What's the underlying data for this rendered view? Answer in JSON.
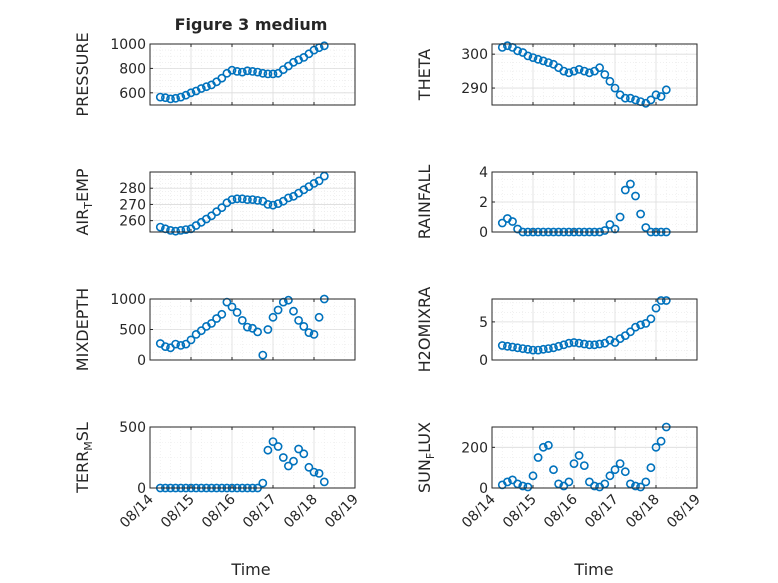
{
  "figure": {
    "title": "Figure 3 medium",
    "xlabel": "Time",
    "x_tick_labels": [
      "08/14",
      "08/15",
      "08/16",
      "08/17",
      "08/18",
      "08/19"
    ],
    "marker_color": "#0072BD"
  },
  "chart_data": [
    {
      "type": "scatter",
      "title": "Figure 3 medium",
      "ylabel": "PRESSURE",
      "ylim": [
        500,
        1000
      ],
      "yticks": [
        600,
        800,
        1000
      ],
      "xlim": [
        "08/14",
        "08/19"
      ],
      "x": [
        "08/14 06:00",
        "08/14 09:00",
        "08/14 12:00",
        "08/14 15:00",
        "08/14 18:00",
        "08/14 21:00",
        "08/15 00:00",
        "08/15 03:00",
        "08/15 06:00",
        "08/15 09:00",
        "08/15 12:00",
        "08/15 15:00",
        "08/15 18:00",
        "08/15 21:00",
        "08/16 00:00",
        "08/16 03:00",
        "08/16 06:00",
        "08/16 09:00",
        "08/16 12:00",
        "08/16 15:00",
        "08/16 18:00",
        "08/16 21:00",
        "08/17 00:00",
        "08/17 03:00",
        "08/17 06:00",
        "08/17 09:00",
        "08/17 12:00",
        "08/17 15:00",
        "08/17 18:00",
        "08/17 21:00",
        "08/18 00:00",
        "08/18 03:00",
        "08/18 06:00"
      ],
      "y": [
        565,
        560,
        550,
        555,
        565,
        580,
        600,
        615,
        635,
        650,
        665,
        690,
        720,
        760,
        785,
        775,
        770,
        780,
        775,
        770,
        760,
        755,
        755,
        760,
        790,
        820,
        850,
        870,
        890,
        920,
        950,
        970,
        985
      ]
    },
    {
      "type": "scatter",
      "ylabel": "THETA",
      "ylim": [
        285,
        303
      ],
      "yticks": [
        290,
        300
      ],
      "xlim": [
        "08/14",
        "08/19"
      ],
      "x": [
        "08/14 06:00",
        "08/14 09:00",
        "08/14 12:00",
        "08/14 15:00",
        "08/14 18:00",
        "08/14 21:00",
        "08/15 00:00",
        "08/15 03:00",
        "08/15 06:00",
        "08/15 09:00",
        "08/15 12:00",
        "08/15 15:00",
        "08/15 18:00",
        "08/15 21:00",
        "08/16 00:00",
        "08/16 03:00",
        "08/16 06:00",
        "08/16 09:00",
        "08/16 12:00",
        "08/16 15:00",
        "08/16 18:00",
        "08/16 21:00",
        "08/17 00:00",
        "08/17 03:00",
        "08/17 06:00",
        "08/17 09:00",
        "08/17 12:00",
        "08/17 15:00",
        "08/17 18:00",
        "08/17 21:00",
        "08/18 00:00",
        "08/18 03:00",
        "08/18 06:00"
      ],
      "y": [
        302,
        302.5,
        302,
        301,
        300.5,
        299.5,
        299,
        298.5,
        298,
        297.5,
        297,
        296,
        295,
        294.5,
        295,
        295.5,
        295,
        294.5,
        295,
        296,
        294,
        292,
        290,
        288,
        287,
        287,
        286.5,
        286,
        285.5,
        286.5,
        288,
        287.5,
        289.5
      ]
    },
    {
      "type": "scatter",
      "ylabel": "AIR_TEMP",
      "ylim": [
        253,
        290
      ],
      "yticks": [
        260,
        270,
        280
      ],
      "xlim": [
        "08/14",
        "08/19"
      ],
      "x": [
        "08/14 06:00",
        "08/14 09:00",
        "08/14 12:00",
        "08/14 15:00",
        "08/14 18:00",
        "08/14 21:00",
        "08/15 00:00",
        "08/15 03:00",
        "08/15 06:00",
        "08/15 09:00",
        "08/15 12:00",
        "08/15 15:00",
        "08/15 18:00",
        "08/15 21:00",
        "08/16 00:00",
        "08/16 03:00",
        "08/16 06:00",
        "08/16 09:00",
        "08/16 12:00",
        "08/16 15:00",
        "08/16 18:00",
        "08/16 21:00",
        "08/17 00:00",
        "08/17 03:00",
        "08/17 06:00",
        "08/17 09:00",
        "08/17 12:00",
        "08/17 15:00",
        "08/17 18:00",
        "08/17 21:00",
        "08/18 00:00",
        "08/18 03:00",
        "08/18 06:00"
      ],
      "y": [
        256,
        255,
        254,
        253.5,
        254,
        254.5,
        255,
        257,
        259,
        261,
        263,
        265.5,
        268,
        271,
        273,
        273.5,
        273.5,
        273,
        273,
        272.5,
        272,
        270,
        269.5,
        270.5,
        272,
        274,
        275,
        277,
        279,
        281,
        283,
        284.5,
        287.5
      ]
    },
    {
      "type": "scatter",
      "ylabel": "RAINFALL",
      "ylim": [
        0,
        4
      ],
      "yticks": [
        0,
        2,
        4
      ],
      "xlim": [
        "08/14",
        "08/19"
      ],
      "x": [
        "08/14 06:00",
        "08/14 09:00",
        "08/14 12:00",
        "08/14 15:00",
        "08/14 18:00",
        "08/14 21:00",
        "08/15 00:00",
        "08/15 03:00",
        "08/15 06:00",
        "08/15 09:00",
        "08/15 12:00",
        "08/15 15:00",
        "08/15 18:00",
        "08/15 21:00",
        "08/16 00:00",
        "08/16 03:00",
        "08/16 06:00",
        "08/16 09:00",
        "08/16 12:00",
        "08/16 15:00",
        "08/16 18:00",
        "08/16 21:00",
        "08/17 00:00",
        "08/17 03:00",
        "08/17 06:00",
        "08/17 09:00",
        "08/17 12:00",
        "08/17 15:00",
        "08/17 18:00",
        "08/17 21:00",
        "08/18 00:00",
        "08/18 03:00",
        "08/18 06:00"
      ],
      "y": [
        0.6,
        0.9,
        0.7,
        0.2,
        0,
        0,
        0,
        0,
        0,
        0,
        0,
        0,
        0,
        0,
        0,
        0,
        0,
        0,
        0,
        0,
        0.1,
        0.5,
        0.2,
        1.0,
        2.8,
        3.2,
        2.4,
        1.2,
        0.3,
        0,
        0,
        0,
        0
      ]
    },
    {
      "type": "scatter",
      "ylabel": "MIXDEPTH",
      "ylim": [
        0,
        1000
      ],
      "yticks": [
        0,
        500,
        1000
      ],
      "xlim": [
        "08/14",
        "08/19"
      ],
      "x": [
        "08/14 06:00",
        "08/14 09:00",
        "08/14 12:00",
        "08/14 15:00",
        "08/14 18:00",
        "08/14 21:00",
        "08/15 00:00",
        "08/15 03:00",
        "08/15 06:00",
        "08/15 09:00",
        "08/15 12:00",
        "08/15 15:00",
        "08/15 18:00",
        "08/15 21:00",
        "08/16 00:00",
        "08/16 03:00",
        "08/16 06:00",
        "08/16 09:00",
        "08/16 12:00",
        "08/16 15:00",
        "08/16 18:00",
        "08/16 21:00",
        "08/17 00:00",
        "08/17 03:00",
        "08/17 06:00",
        "08/17 09:00",
        "08/17 12:00",
        "08/17 15:00",
        "08/17 18:00",
        "08/17 21:00",
        "08/18 00:00",
        "08/18 03:00",
        "08/18 06:00"
      ],
      "y": [
        270,
        220,
        200,
        260,
        240,
        260,
        330,
        420,
        480,
        550,
        600,
        680,
        750,
        950,
        870,
        780,
        650,
        540,
        520,
        460,
        80,
        500,
        700,
        820,
        950,
        980,
        800,
        650,
        550,
        450,
        420,
        700,
        1000
      ]
    },
    {
      "type": "scatter",
      "ylabel": "H2OMIXRA",
      "ylim": [
        0,
        8
      ],
      "yticks": [
        0,
        5
      ],
      "xlim": [
        "08/14",
        "08/19"
      ],
      "x": [
        "08/14 06:00",
        "08/14 09:00",
        "08/14 12:00",
        "08/14 15:00",
        "08/14 18:00",
        "08/14 21:00",
        "08/15 00:00",
        "08/15 03:00",
        "08/15 06:00",
        "08/15 09:00",
        "08/15 12:00",
        "08/15 15:00",
        "08/15 18:00",
        "08/15 21:00",
        "08/16 00:00",
        "08/16 03:00",
        "08/16 06:00",
        "08/16 09:00",
        "08/16 12:00",
        "08/16 15:00",
        "08/16 18:00",
        "08/16 21:00",
        "08/17 00:00",
        "08/17 03:00",
        "08/17 06:00",
        "08/17 09:00",
        "08/17 12:00",
        "08/17 15:00",
        "08/17 18:00",
        "08/17 21:00",
        "08/18 00:00",
        "08/18 03:00",
        "08/18 06:00"
      ],
      "y": [
        1.9,
        1.8,
        1.7,
        1.6,
        1.5,
        1.4,
        1.3,
        1.3,
        1.4,
        1.5,
        1.6,
        1.8,
        2.0,
        2.2,
        2.3,
        2.2,
        2.1,
        2.0,
        2.0,
        2.1,
        2.2,
        2.6,
        2.3,
        2.8,
        3.2,
        3.7,
        4.3,
        4.6,
        4.8,
        5.4,
        6.8,
        7.8,
        7.8
      ]
    },
    {
      "type": "scatter",
      "ylabel": "TERR_MSL",
      "ylim": [
        0,
        500
      ],
      "yticks": [
        0,
        500
      ],
      "xlim": [
        "08/14",
        "08/19"
      ],
      "x": [
        "08/14 06:00",
        "08/14 09:00",
        "08/14 12:00",
        "08/14 15:00",
        "08/14 18:00",
        "08/14 21:00",
        "08/15 00:00",
        "08/15 03:00",
        "08/15 06:00",
        "08/15 09:00",
        "08/15 12:00",
        "08/15 15:00",
        "08/15 18:00",
        "08/15 21:00",
        "08/16 00:00",
        "08/16 03:00",
        "08/16 06:00",
        "08/16 09:00",
        "08/16 12:00",
        "08/16 15:00",
        "08/16 18:00",
        "08/16 21:00",
        "08/17 00:00",
        "08/17 03:00",
        "08/17 06:00",
        "08/17 09:00",
        "08/17 12:00",
        "08/17 15:00",
        "08/17 18:00",
        "08/17 21:00",
        "08/18 00:00",
        "08/18 03:00",
        "08/18 06:00"
      ],
      "y": [
        0,
        0,
        0,
        0,
        0,
        0,
        0,
        0,
        0,
        0,
        0,
        0,
        0,
        0,
        0,
        0,
        0,
        0,
        0,
        0,
        40,
        310,
        380,
        340,
        250,
        180,
        220,
        320,
        280,
        170,
        130,
        120,
        50
      ]
    },
    {
      "type": "scatter",
      "ylabel": "SUN_FLUX",
      "ylim": [
        0,
        300
      ],
      "yticks": [
        0,
        200
      ],
      "xlim": [
        "08/14",
        "08/19"
      ],
      "x": [
        "08/14 06:00",
        "08/14 09:00",
        "08/14 12:00",
        "08/14 15:00",
        "08/14 18:00",
        "08/14 21:00",
        "08/15 00:00",
        "08/15 03:00",
        "08/15 06:00",
        "08/15 09:00",
        "08/15 12:00",
        "08/15 15:00",
        "08/15 18:00",
        "08/15 21:00",
        "08/16 00:00",
        "08/16 03:00",
        "08/16 06:00",
        "08/16 09:00",
        "08/16 12:00",
        "08/16 15:00",
        "08/16 18:00",
        "08/16 21:00",
        "08/17 00:00",
        "08/17 03:00",
        "08/17 06:00",
        "08/17 09:00",
        "08/17 12:00",
        "08/17 15:00",
        "08/17 18:00",
        "08/17 21:00",
        "08/18 00:00",
        "08/18 03:00",
        "08/18 06:00"
      ],
      "y": [
        15,
        30,
        40,
        20,
        10,
        5,
        60,
        150,
        200,
        210,
        90,
        20,
        10,
        30,
        120,
        160,
        110,
        30,
        10,
        5,
        20,
        60,
        90,
        120,
        80,
        20,
        10,
        5,
        30,
        100,
        200,
        230,
        300
      ]
    }
  ]
}
